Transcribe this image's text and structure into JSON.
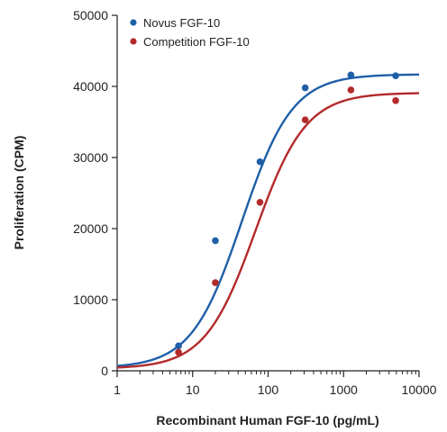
{
  "chart_data": {
    "type": "scatter",
    "title": "",
    "xlabel": "Recombinant Human FGF-10 (pg/mL)",
    "ylabel": "Proliferation (CPM)",
    "xscale": "log",
    "xlim": [
      1,
      10000
    ],
    "ylim": [
      0,
      50000
    ],
    "x_ticks": [
      1,
      10,
      100,
      1000,
      10000
    ],
    "x_tick_labels": [
      "1",
      "10",
      "100",
      "1000",
      "10000"
    ],
    "y_ticks": [
      0,
      10000,
      20000,
      30000,
      40000,
      50000
    ],
    "y_tick_labels": [
      "0",
      "10000",
      "20000",
      "30000",
      "40000",
      "50000"
    ],
    "grid": false,
    "legend_position": "top-left",
    "series": [
      {
        "name": "Novus FGF-10",
        "color": "#1f5fa8",
        "x": [
          6.5,
          20,
          78,
          310,
          1250,
          4900
        ],
        "y": [
          3500,
          18300,
          29400,
          39800,
          41600,
          41500
        ],
        "fit": {
          "bottom": 400,
          "top": 41700,
          "ec50": 45,
          "hill": 1.3
        }
      },
      {
        "name": "Competition FGF-10",
        "color": "#b32a2a",
        "x": [
          6.5,
          20,
          78,
          310,
          1250,
          4900
        ],
        "y": [
          2600,
          12400,
          23700,
          35300,
          39500,
          38000
        ],
        "fit": {
          "bottom": 300,
          "top": 39100,
          "ec50": 68,
          "hill": 1.3
        }
      }
    ]
  }
}
